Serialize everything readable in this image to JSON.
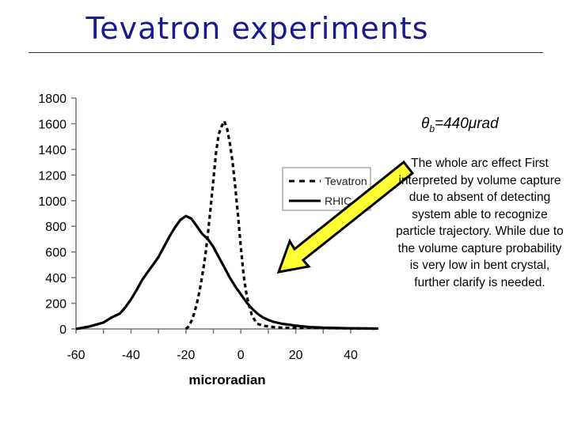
{
  "slide": {
    "title": "Tevatron experiments",
    "theta_symbol": "θ",
    "theta_subscript": "b",
    "theta_value": "=440μrad",
    "annotation": "The whole arc effect First interpreted by volume capture due to absent of detecting system able to recognize particle trajectory. While due to the volume capture probability is very low in bent crystal, further clarify is needed.",
    "arrow_fill": "#ffff33",
    "arrow_stroke": "#000000"
  },
  "chart_data": {
    "type": "line",
    "xlabel": "microradian",
    "ylabel": "",
    "xlim": [
      -60,
      50
    ],
    "ylim": [
      0,
      1800
    ],
    "x_ticks": [
      "-60",
      "-40",
      "-20",
      "0",
      "20",
      "40"
    ],
    "y_ticks": [
      "0",
      "200",
      "400",
      "600",
      "800",
      "1000",
      "1200",
      "1400",
      "1600",
      "1800"
    ],
    "legend_position": "top-right",
    "grid": false,
    "series": [
      {
        "name": "Tevatron",
        "style": "dashed",
        "x": [
          -20,
          -19,
          -18,
          -17,
          -16,
          -15,
          -14,
          -13,
          -12,
          -11,
          -10,
          -9,
          -8,
          -7,
          -6,
          -5,
          -4,
          -3,
          -2,
          -1,
          0,
          1,
          2,
          3,
          4,
          5,
          6,
          8,
          10,
          12,
          15,
          20,
          25,
          30,
          35,
          40,
          45,
          50
        ],
        "values": [
          0,
          20,
          60,
          120,
          200,
          300,
          420,
          560,
          740,
          940,
          1160,
          1380,
          1520,
          1580,
          1620,
          1560,
          1450,
          1300,
          1100,
          880,
          640,
          420,
          280,
          180,
          110,
          70,
          40,
          25,
          20,
          15,
          10,
          8,
          10,
          8,
          6,
          5,
          4,
          2
        ]
      },
      {
        "name": "RHIC",
        "style": "solid",
        "x": [
          -60,
          -55,
          -50,
          -47,
          -44,
          -42,
          -40,
          -38,
          -36,
          -34,
          -32,
          -30,
          -28,
          -26,
          -24,
          -22,
          -20,
          -18,
          -16,
          -14,
          -12,
          -10,
          -8,
          -6,
          -4,
          -2,
          0,
          2,
          4,
          6,
          8,
          10,
          12,
          15,
          18,
          20,
          25,
          30,
          40,
          50
        ],
        "values": [
          0,
          20,
          50,
          90,
          120,
          170,
          230,
          300,
          380,
          440,
          500,
          560,
          640,
          720,
          790,
          850,
          880,
          860,
          800,
          740,
          700,
          640,
          560,
          480,
          400,
          330,
          270,
          210,
          160,
          120,
          90,
          70,
          55,
          40,
          32,
          25,
          15,
          10,
          5,
          3
        ]
      }
    ]
  }
}
